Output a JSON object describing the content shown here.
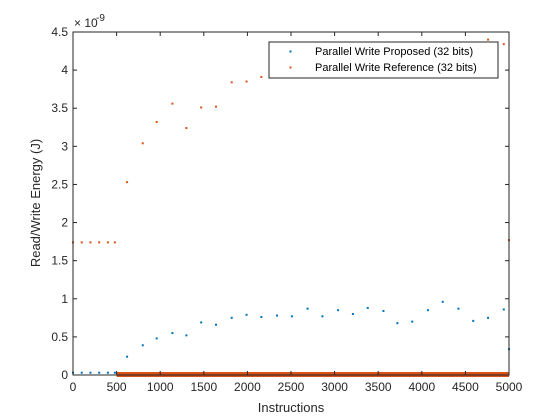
{
  "chart_data": {
    "type": "scatter",
    "title": "",
    "xlabel": "Instructions",
    "ylabel": "Read/Write Energy (J)",
    "y_exponent_label": "× 10",
    "y_exponent_power": "-9",
    "xlim": [
      0,
      5000
    ],
    "ylim": [
      0,
      4.5
    ],
    "xticks": [
      0,
      500,
      1000,
      1500,
      2000,
      2500,
      3000,
      3500,
      4000,
      4500,
      5000
    ],
    "xtick_labels": [
      "0",
      "500",
      "1000",
      "1500",
      "2000",
      "2500",
      "3000",
      "3500",
      "4000",
      "4500",
      "5000"
    ],
    "yticks": [
      0,
      0.5,
      1,
      1.5,
      2,
      2.5,
      3,
      3.5,
      4,
      4.5
    ],
    "ytick_labels": [
      "0",
      "0.5",
      "1",
      "1.5",
      "2",
      "2.5",
      "3",
      "3.5",
      "4",
      "4.5"
    ],
    "grid": false,
    "legend_position": "top-right",
    "series": [
      {
        "name": "Parallel Write Proposed (32 bits)",
        "color": "#0072BD",
        "x": [
          0,
          100,
          200,
          300,
          400,
          480,
          620,
          800,
          960,
          1140,
          1300,
          1470,
          1640,
          1820,
          1990,
          2160,
          2340,
          2510,
          2690,
          2860,
          3040,
          3210,
          3380,
          3560,
          3720,
          3890,
          4070,
          4240,
          4420,
          4590,
          4760,
          4940,
          5000
        ],
        "y": [
          0.03,
          0.03,
          0.03,
          0.03,
          0.03,
          0.03,
          0.24,
          0.39,
          0.48,
          0.55,
          0.52,
          0.69,
          0.66,
          0.75,
          0.79,
          0.76,
          0.78,
          0.77,
          0.87,
          0.77,
          0.85,
          0.8,
          0.88,
          0.84,
          0.68,
          0.7,
          0.85,
          0.96,
          0.87,
          0.71,
          0.75,
          0.86,
          0.34
        ]
      },
      {
        "name": "Parallel Write Reference (32 bits)",
        "color": "#D95319",
        "x": [
          0,
          100,
          200,
          300,
          400,
          480,
          620,
          800,
          960,
          1140,
          1300,
          1470,
          1640,
          1820,
          1990,
          2160,
          4760,
          4940,
          5000
        ],
        "y": [
          1.74,
          1.74,
          1.74,
          1.74,
          1.74,
          1.74,
          2.53,
          3.04,
          3.32,
          3.56,
          3.24,
          3.51,
          3.52,
          3.84,
          3.85,
          3.91,
          4.4,
          4.34,
          1.77
        ]
      }
    ],
    "dense_band": {
      "from_x": 500,
      "to_x": 5000,
      "y": 0,
      "color": "#D95319"
    }
  }
}
